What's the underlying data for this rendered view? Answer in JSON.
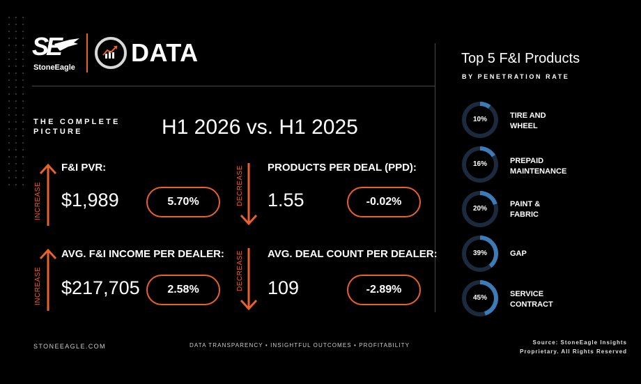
{
  "header": {
    "brand_mark": "SE",
    "brand_name": "StoneEagle",
    "product_word": "DATA"
  },
  "intro": {
    "line1": "THE COMPLETE",
    "line2": "PICTURE",
    "comparison": "H1 2026 vs. H1 2025"
  },
  "metrics": [
    {
      "direction": "INCREASE",
      "label": "F&I PVR:",
      "value": "$1,989",
      "change": "5.70%"
    },
    {
      "direction": "DECREASE",
      "label": "PRODUCTS PER DEAL (PPD):",
      "value": "1.55",
      "change": "-0.02%"
    },
    {
      "direction": "INCREASE",
      "label": "AVG. F&I INCOME PER DEALER:",
      "value": "$217,705",
      "change": "2.58%"
    },
    {
      "direction": "DECREASE",
      "label": "AVG. DEAL COUNT PER DEALER:",
      "value": "109",
      "change": "-2.89%"
    }
  ],
  "products_panel": {
    "title": "Top 5 F&I Products",
    "subtitle": "BY PENETRATION RATE",
    "items": [
      {
        "pct_label": "10%",
        "rate": 10,
        "name_line1": "TIRE AND",
        "name_line2": "WHEEL"
      },
      {
        "pct_label": "16%",
        "rate": 16,
        "name_line1": "PREPAID",
        "name_line2": "MAINTENANCE"
      },
      {
        "pct_label": "20%",
        "rate": 20,
        "name_line1": "PAINT &",
        "name_line2": "FABRIC"
      },
      {
        "pct_label": "39%",
        "rate": 39,
        "name_line1": "GAP",
        "name_line2": ""
      },
      {
        "pct_label": "45%",
        "rate": 45,
        "name_line1": "SERVICE",
        "name_line2": "CONTRACT"
      }
    ]
  },
  "footer": {
    "website": "STONEEAGLE.COM",
    "tagline": "DATA TRANSPARENCY • INSIGHTFUL OUTCOMES • PROFITABILITY",
    "source_line1": "Source: StoneEagle Insights",
    "source_line2": "Proprietary. All Rights Reserved"
  },
  "colors": {
    "accent_orange": "#e8622a",
    "donut_track": "#1b2b3d",
    "donut_fill": "#3d7ab8",
    "divider": "#4a4a4a"
  }
}
